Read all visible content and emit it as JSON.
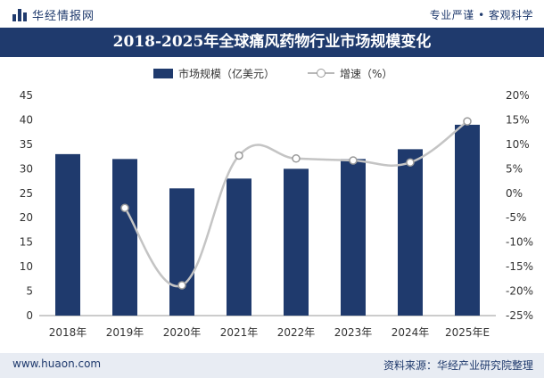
{
  "header": {
    "brand": "华经情报网",
    "tagline": "专业严谨 • 客观科学"
  },
  "footer": {
    "site": "www.huaon.com",
    "source": "资料来源：华经产业研究院整理"
  },
  "colors": {
    "bar": "#1f3a6d",
    "line": "#c4c4c4",
    "marker_stroke": "#9a9a9a"
  },
  "chart_data": {
    "type": "bar",
    "title": "2018-2025年全球痛风药物行业市场规模变化",
    "categories": [
      "2018年",
      "2019年",
      "2020年",
      "2021年",
      "2022年",
      "2023年",
      "2024年",
      "2025年E"
    ],
    "series": [
      {
        "name": "市场规模（亿美元）",
        "type": "bar",
        "axis": "left",
        "values": [
          33,
          32,
          26,
          28,
          30,
          32,
          34,
          39
        ]
      },
      {
        "name": "增速（%）",
        "type": "line",
        "axis": "right",
        "values": [
          null,
          -3.0,
          -18.8,
          7.7,
          7.1,
          6.7,
          6.3,
          14.7
        ]
      }
    ],
    "y_left": {
      "min": 0,
      "max": 45,
      "step": 5,
      "ticks": [
        "0",
        "5",
        "10",
        "15",
        "20",
        "25",
        "30",
        "35",
        "40",
        "45"
      ]
    },
    "y_right": {
      "min": -25,
      "max": 20,
      "step": 5,
      "ticks": [
        "-25%",
        "-20%",
        "-15%",
        "-10%",
        "-5%",
        "0%",
        "5%",
        "10%",
        "15%",
        "20%"
      ]
    },
    "legend": "top-center",
    "grid": false
  }
}
